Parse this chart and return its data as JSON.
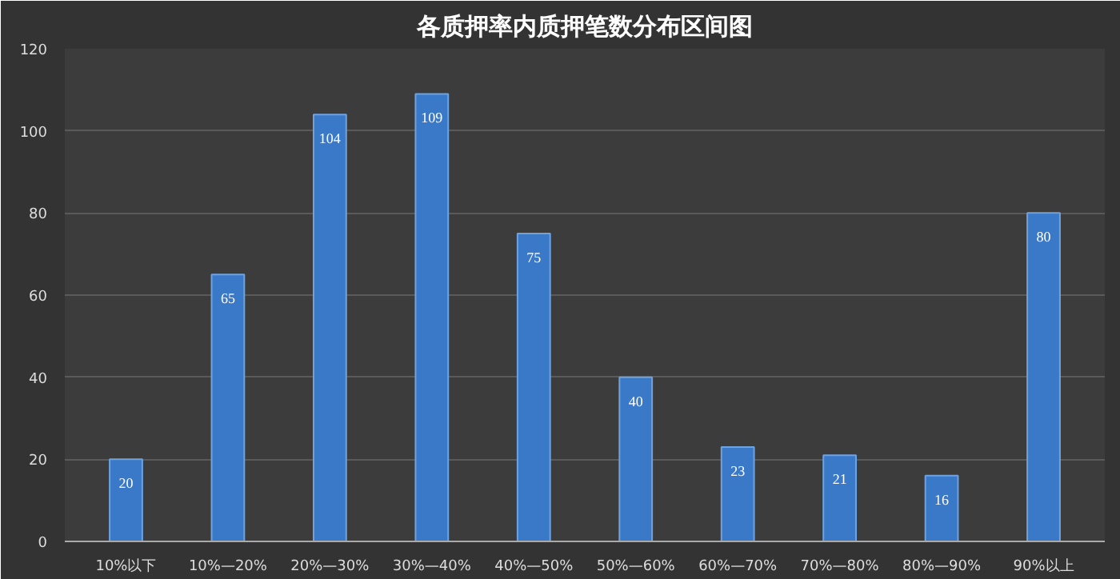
{
  "chart_data": {
    "type": "bar",
    "title": "各质押率内质押笔数分布区间图",
    "categories": [
      "10%以下",
      "10%—20%",
      "20%—30%",
      "30%—40%",
      "40%—50%",
      "50%—60%",
      "60%—70%",
      "70%—80%",
      "80%—90%",
      "90%以上"
    ],
    "values": [
      20,
      65,
      104,
      109,
      75,
      40,
      23,
      21,
      16,
      80
    ],
    "color": "#3a78c8",
    "ylim": [
      0,
      120
    ],
    "yticks": [
      0,
      20,
      40,
      60,
      80,
      100,
      120
    ],
    "grid": "y",
    "data_labels": true
  }
}
